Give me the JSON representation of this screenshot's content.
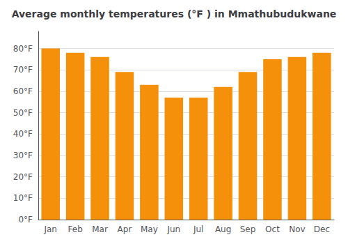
{
  "chart_data": {
    "type": "bar",
    "title": "Average monthly temperatures (°F ) in Mmathubudukwane",
    "categories": [
      "Jan",
      "Feb",
      "Mar",
      "Apr",
      "May",
      "Jun",
      "Jul",
      "Aug",
      "Sep",
      "Oct",
      "Nov",
      "Dec"
    ],
    "values": [
      80,
      78,
      76,
      69,
      63,
      57,
      57,
      62,
      69,
      75,
      76,
      78
    ],
    "color": "#F5900A",
    "ylim": [
      0,
      88
    ],
    "yticks": [
      {
        "value": 0,
        "label": "0°F"
      },
      {
        "value": 10,
        "label": "10°F"
      },
      {
        "value": 20,
        "label": "20°F"
      },
      {
        "value": 30,
        "label": "30°F"
      },
      {
        "value": 40,
        "label": "40°F"
      },
      {
        "value": 50,
        "label": "50°F"
      },
      {
        "value": 60,
        "label": "60°F"
      },
      {
        "value": 70,
        "label": "70°F"
      },
      {
        "value": 80,
        "label": "80°F"
      }
    ],
    "grid": true
  }
}
